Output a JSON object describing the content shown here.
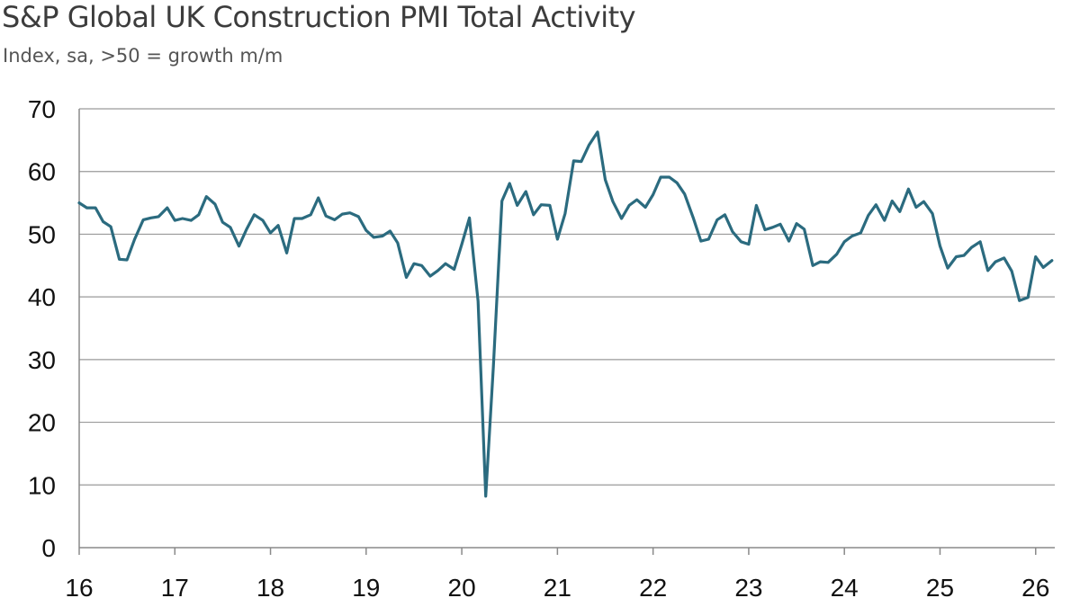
{
  "chart_data": {
    "type": "line",
    "title": "S&P Global UK Construction PMI Total Activity",
    "subtitle": "Index, sa, >50 = growth m/m",
    "xlabel": "",
    "ylabel": "",
    "ylim": [
      0,
      70
    ],
    "xlim": [
      16,
      26.2
    ],
    "yticks": [
      0,
      10,
      20,
      30,
      40,
      50,
      60,
      70
    ],
    "xtick_labels": [
      "16",
      "17",
      "18",
      "19",
      "20",
      "21",
      "22",
      "23",
      "24",
      "25",
      "26"
    ],
    "grid": true,
    "series": [
      {
        "name": "Total Activity",
        "color": "#2b6b7f",
        "x": [
          16.0,
          16.08,
          16.17,
          16.25,
          16.33,
          16.42,
          16.5,
          16.58,
          16.67,
          16.75,
          16.83,
          16.92,
          17.0,
          17.08,
          17.17,
          17.25,
          17.33,
          17.42,
          17.5,
          17.58,
          17.67,
          17.75,
          17.83,
          17.92,
          18.0,
          18.08,
          18.17,
          18.25,
          18.33,
          18.42,
          18.5,
          18.58,
          18.67,
          18.75,
          18.83,
          18.92,
          19.0,
          19.08,
          19.17,
          19.25,
          19.33,
          19.42,
          19.5,
          19.58,
          19.67,
          19.75,
          19.83,
          19.92,
          20.0,
          20.08,
          20.17,
          20.25,
          20.33,
          20.42,
          20.5,
          20.58,
          20.67,
          20.75,
          20.83,
          20.92,
          21.0,
          21.08,
          21.17,
          21.25,
          21.33,
          21.42,
          21.5,
          21.58,
          21.67,
          21.75,
          21.83,
          21.92,
          22.0,
          22.08,
          22.17,
          22.25,
          22.33,
          22.42,
          22.5,
          22.58,
          22.67,
          22.75,
          22.83,
          22.92,
          23.0,
          23.08,
          23.17,
          23.25,
          23.33,
          23.42,
          23.5,
          23.58,
          23.67,
          23.75,
          23.83,
          23.92,
          24.0,
          24.08,
          24.17,
          24.25,
          24.33,
          24.42,
          24.5,
          24.58,
          24.67,
          24.75,
          24.83,
          24.92,
          25.0,
          25.08,
          25.17,
          25.25,
          25.33,
          25.42,
          25.5,
          25.58,
          25.67,
          25.75,
          25.83,
          25.92,
          26.0,
          26.08,
          26.17
        ],
        "values": [
          55.0,
          54.2,
          54.2,
          52.0,
          51.2,
          46.0,
          45.9,
          49.2,
          52.3,
          52.6,
          52.8,
          54.2,
          52.2,
          52.5,
          52.2,
          53.1,
          56.0,
          54.8,
          51.9,
          51.1,
          48.1,
          50.8,
          53.1,
          52.2,
          50.2,
          51.4,
          47.0,
          52.5,
          52.5,
          53.1,
          55.8,
          52.9,
          52.3,
          53.2,
          53.4,
          52.8,
          50.6,
          49.5,
          49.7,
          50.5,
          48.6,
          43.1,
          45.3,
          45.0,
          43.3,
          44.2,
          45.3,
          44.4,
          48.4,
          52.6,
          39.3,
          8.2,
          28.9,
          55.3,
          58.1,
          54.6,
          56.8,
          53.1,
          54.7,
          54.6,
          49.2,
          53.3,
          61.7,
          61.6,
          64.2,
          66.3,
          58.7,
          55.2,
          52.5,
          54.6,
          55.5,
          54.3,
          56.3,
          59.1,
          59.1,
          58.2,
          56.4,
          52.6,
          48.9,
          49.2,
          52.3,
          53.1,
          50.4,
          48.8,
          48.4,
          54.6,
          50.7,
          51.1,
          51.6,
          48.9,
          51.7,
          50.8,
          45.0,
          45.6,
          45.5,
          46.8,
          48.8,
          49.7,
          50.2,
          53.0,
          54.7,
          52.2,
          55.3,
          53.6,
          57.2,
          54.3,
          55.2,
          53.3,
          48.1,
          44.6,
          46.4,
          46.6,
          47.9,
          48.8,
          44.2,
          45.6,
          46.2,
          44.1,
          39.4,
          39.9,
          46.4,
          44.7,
          45.8
        ]
      }
    ]
  }
}
